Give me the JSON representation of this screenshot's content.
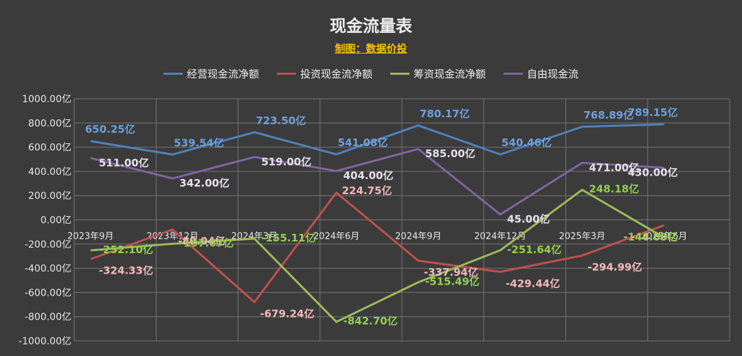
{
  "chart_data": {
    "type": "line",
    "title": "现金流量表",
    "subtitle": "制图：数据价投",
    "categories": [
      "2023年9月",
      "2023年12月",
      "2024年3月",
      "2024年6月",
      "2024年9月",
      "2024年12月",
      "2025年3月",
      "2025年6月"
    ],
    "ylim": [
      -1000,
      1000
    ],
    "ytick_step": 200,
    "ytick_labels": [
      "1000.00亿",
      "800.00亿",
      "600.00亿",
      "400.00亿",
      "200.00亿",
      "0.00亿",
      "-200.00亿",
      "-400.00亿",
      "-600.00亿",
      "-800.00亿",
      "-1000.00亿"
    ],
    "grid": true,
    "legend_position": "top",
    "series": [
      {
        "name": "经营现金流净额",
        "color": "#4f81bd",
        "label_color": "#6fa0dc",
        "values": [
          650.25,
          539.54,
          723.5,
          541.08,
          780.17,
          540.46,
          768.89,
          789.15
        ],
        "labels": [
          "650.25亿",
          "539.54亿",
          "723.50亿",
          "541.08亿",
          "780.17亿",
          "540.46亿",
          "768.89亿",
          "789.15亿"
        ]
      },
      {
        "name": "投资现金流净额",
        "color": "#c0504d",
        "label_color": "#f2b8b8",
        "values": [
          -324.33,
          -80.04,
          -679.24,
          224.75,
          -337.94,
          -429.44,
          -294.99,
          -44.83
        ],
        "labels": [
          "-324.33亿",
          "-80.04亿",
          "-679.24亿",
          "224.75亿",
          "-337.94亿",
          "-429.44亿",
          "-294.99亿",
          "-44.83亿"
        ]
      },
      {
        "name": "筹资现金流净额",
        "color": "#9bbb59",
        "label_color": "#92d050",
        "values": [
          -252.1,
          -197.67,
          -155.11,
          -842.7,
          -515.49,
          -251.64,
          248.18,
          -146.0
        ],
        "labels": [
          "-252.10亿",
          "-197.67亿",
          "-155.11亿",
          "-842.70亿",
          "-515.49亿",
          "-251.64亿",
          "248.18亿",
          "-146.00亿"
        ]
      },
      {
        "name": "自由现金流",
        "color": "#8064a2",
        "label_color": "#e6e0ec",
        "values": [
          511.0,
          342.0,
          519.0,
          404.0,
          585.0,
          45.0,
          471.0,
          430.0
        ],
        "labels": [
          "511.00亿",
          "342.00亿",
          "519.00亿",
          "404.00亿",
          "585.00亿",
          "45.00亿",
          "471.00亿",
          "430.00亿"
        ]
      }
    ]
  }
}
